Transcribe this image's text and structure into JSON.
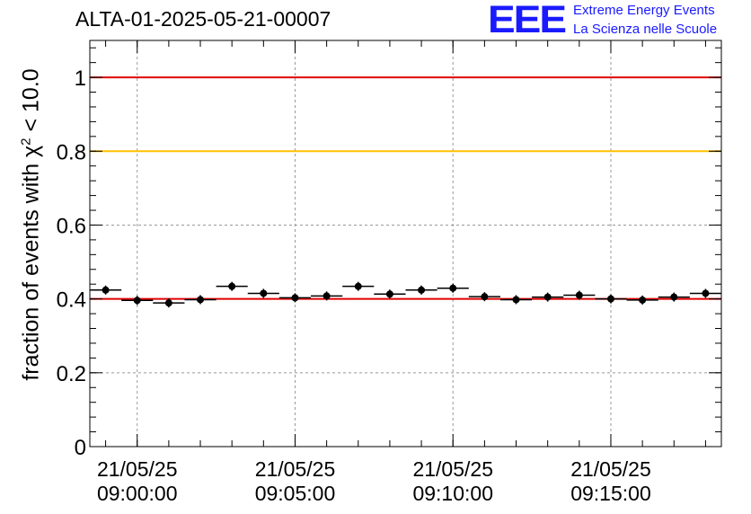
{
  "header": {
    "title": "ALTA-01-2025-05-21-00007",
    "logo_text": "EEE",
    "logo_line1": "Extreme Energy Events",
    "logo_line2": "La Scienza nelle Scuole"
  },
  "colors": {
    "logo": "#1a1aff",
    "reference_red": "#e00000",
    "reference_yellow": "#ffc000",
    "grid": "#999999",
    "points": "#000000"
  },
  "chart_data": {
    "type": "scatter",
    "title": "ALTA-01-2025-05-21-00007",
    "xlabel": "",
    "ylabel_prefix": "fraction of events with ",
    "ylabel_symbol": "χ",
    "ylabel_exp": "2",
    "ylabel_suffix": " < 10.0",
    "x_unit": "minutes after 09:00:00",
    "xlim": [
      -1.5,
      18.5
    ],
    "ylim": [
      0,
      1.1
    ],
    "grid": true,
    "y_ticks": [
      {
        "value": 0,
        "label": "0"
      },
      {
        "value": 0.2,
        "label": "0.2"
      },
      {
        "value": 0.4,
        "label": "0.4"
      },
      {
        "value": 0.6,
        "label": "0.6"
      },
      {
        "value": 0.8,
        "label": "0.8"
      },
      {
        "value": 1.0,
        "label": "1"
      }
    ],
    "x_ticks": [
      {
        "value": 0,
        "date": "21/05/25",
        "time": "09:00:00"
      },
      {
        "value": 5,
        "date": "21/05/25",
        "time": "09:05:00"
      },
      {
        "value": 10,
        "date": "21/05/25",
        "time": "09:10:00"
      },
      {
        "value": 15,
        "date": "21/05/25",
        "time": "09:15:00"
      }
    ],
    "bin_half_width": 0.5,
    "points": [
      {
        "x": -1.0,
        "y": 0.424
      },
      {
        "x": 0.0,
        "y": 0.396
      },
      {
        "x": 1.0,
        "y": 0.389
      },
      {
        "x": 2.0,
        "y": 0.398
      },
      {
        "x": 3.0,
        "y": 0.434
      },
      {
        "x": 4.0,
        "y": 0.415
      },
      {
        "x": 5.0,
        "y": 0.403
      },
      {
        "x": 6.0,
        "y": 0.408
      },
      {
        "x": 7.0,
        "y": 0.434
      },
      {
        "x": 8.0,
        "y": 0.413
      },
      {
        "x": 9.0,
        "y": 0.424
      },
      {
        "x": 10.0,
        "y": 0.429
      },
      {
        "x": 11.0,
        "y": 0.406
      },
      {
        "x": 12.0,
        "y": 0.398
      },
      {
        "x": 13.0,
        "y": 0.405
      },
      {
        "x": 14.0,
        "y": 0.41
      },
      {
        "x": 15.0,
        "y": 0.4
      },
      {
        "x": 16.0,
        "y": 0.397
      },
      {
        "x": 17.0,
        "y": 0.405
      },
      {
        "x": 18.0,
        "y": 0.415
      }
    ],
    "reference_lines": [
      {
        "y": 1.0,
        "color": "#e00000"
      },
      {
        "y": 0.8,
        "color": "#ffc000"
      },
      {
        "y": 0.4,
        "color": "#e00000"
      }
    ]
  }
}
